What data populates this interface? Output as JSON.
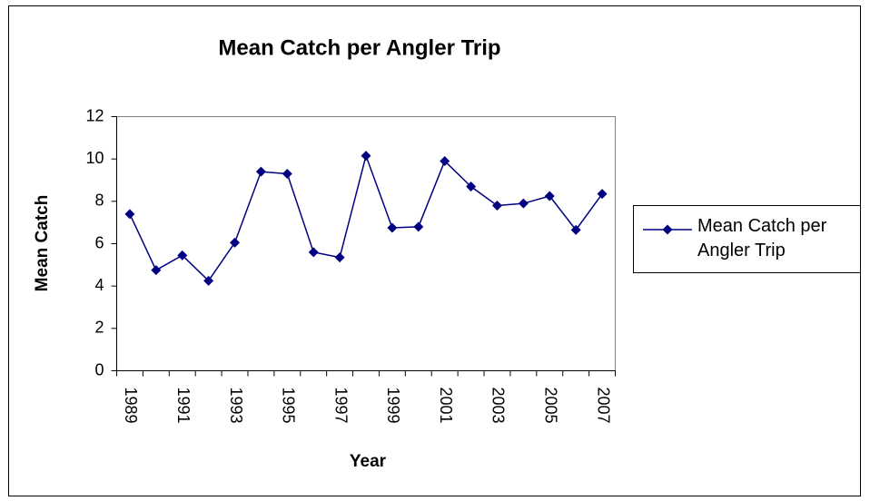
{
  "chart_data": {
    "type": "line",
    "title": "Mean Catch per Angler Trip",
    "x_label": "Year",
    "y_label": "Mean Catch",
    "categories": [
      "1989",
      null,
      "1991",
      null,
      "1993",
      null,
      "1995",
      null,
      "1997",
      null,
      "1999",
      null,
      "2001",
      null,
      "2003",
      null,
      "2005",
      null,
      "2007"
    ],
    "series": [
      {
        "name": "Mean Catch per Angler Trip",
        "color": "#000080",
        "values": [
          7.4,
          4.75,
          5.45,
          4.25,
          6.05,
          9.4,
          9.3,
          5.6,
          5.35,
          10.15,
          6.75,
          6.8,
          9.9,
          8.7,
          7.8,
          7.9,
          8.25,
          6.65,
          8.35
        ]
      }
    ],
    "ylim": [
      0,
      12
    ],
    "yticks": [
      0,
      2,
      4,
      6,
      8,
      10,
      12
    ],
    "legend": "right"
  }
}
